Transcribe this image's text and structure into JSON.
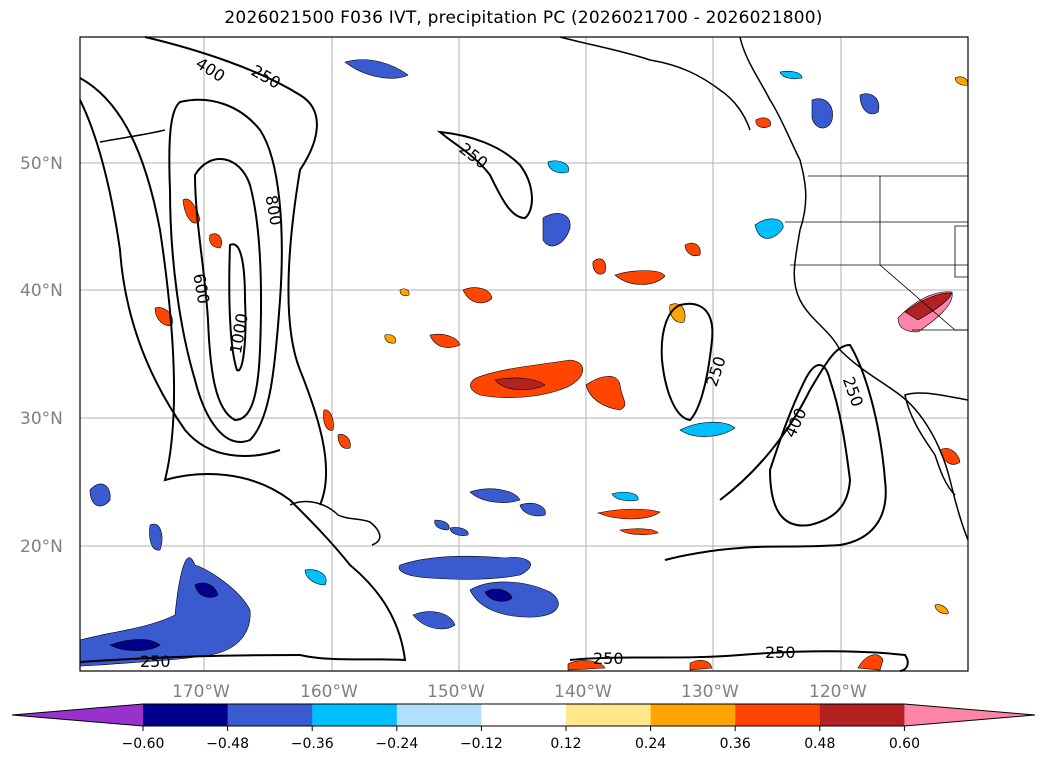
{
  "title": "2026021500 F036 IVT, precipitation PC (2026021700 - 2026021800)",
  "latitude_labels": [
    "50°N",
    "40°N",
    "30°N",
    "20°N"
  ],
  "longitude_labels": [
    "170°W",
    "160°W",
    "150°W",
    "140°W",
    "130°W",
    "120°W"
  ],
  "contour_labels": [
    "400",
    "250",
    "800",
    "600",
    "1000",
    "250",
    "250",
    "400",
    "250",
    "250",
    "250"
  ],
  "colorbar": {
    "ticks": [
      "−0.60",
      "−0.48",
      "−0.36",
      "−0.24",
      "−0.12",
      "0.12",
      "0.24",
      "0.36",
      "0.48",
      "0.60"
    ],
    "colors": [
      "#9932cc",
      "#00008b",
      "#3a5bd0",
      "#00bfff",
      "#b0e0fa",
      "#ffffff",
      "#ffe88c",
      "#ffa500",
      "#ff4500",
      "#b22222",
      "#ff85a8"
    ]
  }
}
